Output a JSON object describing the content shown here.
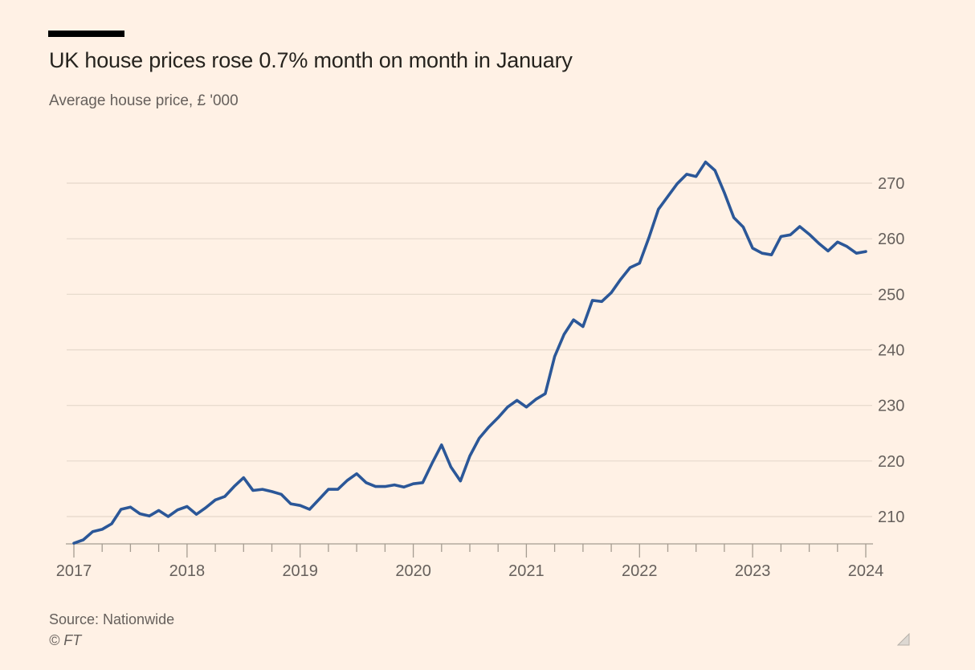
{
  "header": {
    "title": "UK house prices rose 0.7% month on month in January",
    "subtitle": "Average house price, £ '000"
  },
  "footer": {
    "source": "Source: Nationwide",
    "credit": "© FT"
  },
  "colors": {
    "background": "#fff1e5",
    "line": "#2b5798",
    "gridline": "#e5d8cb",
    "axis": "#a59c91",
    "title_text": "#26231e",
    "muted_text": "#66605c",
    "kicker_bar": "#000000",
    "resize_handle_fill": "#ddd8d2",
    "resize_handle_border": "#b7b1a9"
  },
  "chart_data": {
    "type": "line",
    "title": "UK house prices rose 0.7% month on month in January",
    "subtitle": "Average house price, £ '000",
    "xlabel": "",
    "ylabel": "Average house price, £ '000",
    "grid": "horizontal",
    "legend": "none",
    "y_axis_side": "right",
    "ylim": [
      205,
      275
    ],
    "y_ticks": [
      210,
      220,
      230,
      240,
      250,
      260,
      270
    ],
    "x_tick_labels": [
      "2017",
      "2018",
      "2019",
      "2020",
      "2021",
      "2022",
      "2023",
      "2024"
    ],
    "x_minor_ticks": "quarterly",
    "x_start": "2017-01",
    "x_end": "2024-01",
    "frequency": "monthly",
    "series": [
      {
        "name": "Average UK house price, £ '000 (Nationwide)",
        "values": [
          205.2,
          205.8,
          207.3,
          207.7,
          208.7,
          211.3,
          211.7,
          210.5,
          210.1,
          211.1,
          210.0,
          211.2,
          211.8,
          210.4,
          211.6,
          213.0,
          213.6,
          215.4,
          217.0,
          214.7,
          214.9,
          214.5,
          214.0,
          212.3,
          212.0,
          211.3,
          213.1,
          214.9,
          214.9,
          216.5,
          217.7,
          216.1,
          215.4,
          215.4,
          215.7,
          215.3,
          215.9,
          216.1,
          219.6,
          222.9,
          218.9,
          216.4,
          220.9,
          224.1,
          226.1,
          227.8,
          229.7,
          230.9,
          229.7,
          231.1,
          232.1,
          238.8,
          242.8,
          245.4,
          244.2,
          248.9,
          248.7,
          250.3,
          252.7,
          254.8,
          255.6,
          260.2,
          265.3,
          267.6,
          269.9,
          271.6,
          271.2,
          273.8,
          272.3,
          268.3,
          263.8,
          262.1,
          258.3,
          257.4,
          257.1,
          260.4,
          260.7,
          262.2,
          260.8,
          259.2,
          257.8,
          259.4,
          258.6,
          257.4,
          257.7
        ]
      }
    ]
  }
}
